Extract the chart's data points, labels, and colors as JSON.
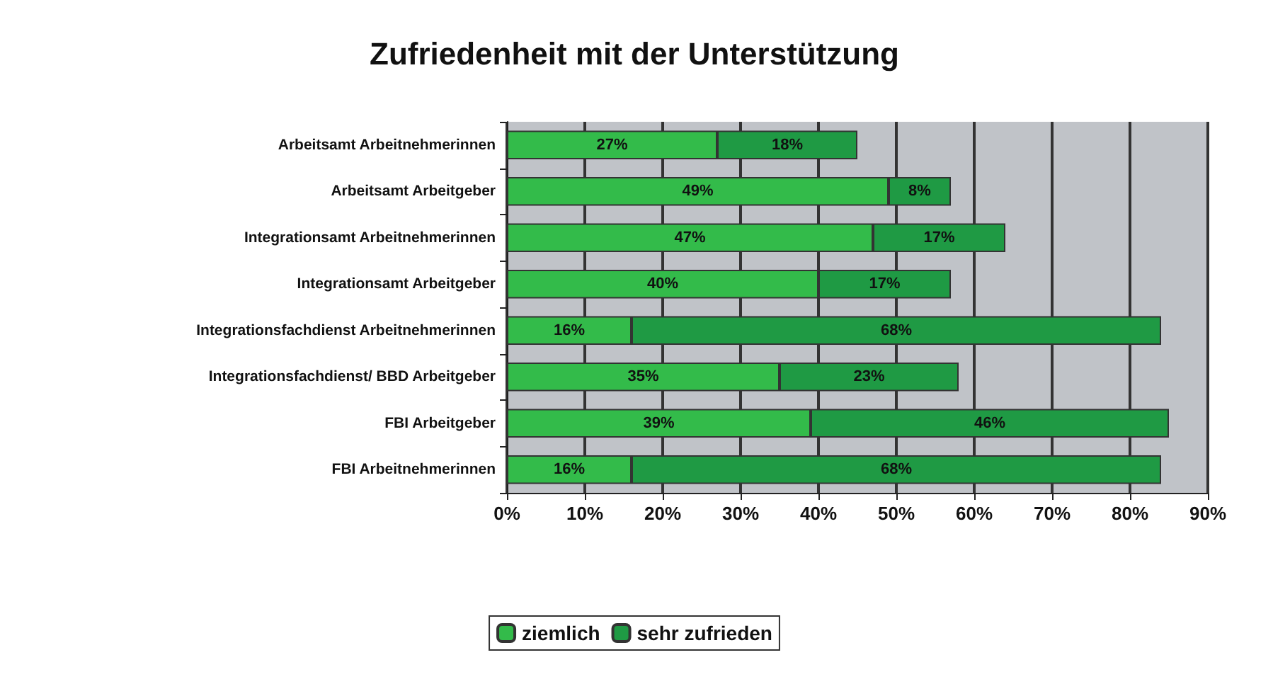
{
  "chart_data": {
    "type": "bar",
    "orientation": "horizontal",
    "stacked": true,
    "title": "Zufriedenheit mit der Unterstützung",
    "categories": [
      "Arbeitsamt Arbeitnehmerinnen",
      "Arbeitsamt Arbeitgeber",
      "Integrationsamt Arbeitnehmerinnen",
      "Integrationsamt Arbeitgeber",
      "Integrationsfachdienst Arbeitnehmerinnen",
      "Integrationsfachdienst/ BBD Arbeitgeber",
      "FBI Arbeitgeber",
      "FBI Arbeitnehmerinnen"
    ],
    "series": [
      {
        "name": "ziemlich",
        "color": "#33bb4a",
        "values": [
          27,
          49,
          47,
          40,
          16,
          35,
          39,
          16
        ],
        "value_labels": [
          "27%",
          "49%",
          "47%",
          "40%",
          "16%",
          "35%",
          "39%",
          "16%"
        ]
      },
      {
        "name": "sehr zufrieden",
        "color": "#1f9a44",
        "values": [
          18,
          8,
          17,
          17,
          68,
          23,
          46,
          68
        ],
        "value_labels": [
          "18%",
          "8%",
          "17%",
          "17%",
          "68%",
          "23%",
          "46%",
          "68%"
        ]
      }
    ],
    "xlim": [
      0,
      90
    ],
    "xticks": [
      {
        "value": 0,
        "label": "0%"
      },
      {
        "value": 10,
        "label": "10%"
      },
      {
        "value": 20,
        "label": "20%"
      },
      {
        "value": 30,
        "label": "30%"
      },
      {
        "value": 40,
        "label": "40%"
      },
      {
        "value": 50,
        "label": "50%"
      },
      {
        "value": 60,
        "label": "60%"
      },
      {
        "value": 70,
        "label": "70%"
      },
      {
        "value": 80,
        "label": "80%"
      },
      {
        "value": 90,
        "label": "90%"
      }
    ],
    "grid": "x",
    "legend": "bottom"
  }
}
